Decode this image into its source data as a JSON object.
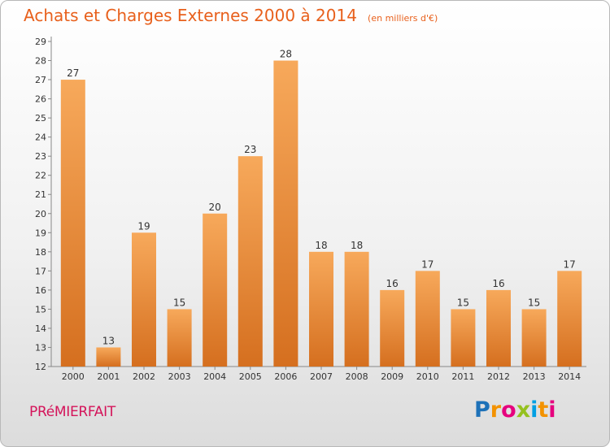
{
  "header": {
    "title": "Achats et Charges Externes 2000 à 2014",
    "unit": "(en milliers d'€)"
  },
  "footer": {
    "commune": "PRéMIERFAIT",
    "logo_letters": [
      "P",
      "r",
      "o",
      "x",
      "i",
      "t",
      "i"
    ],
    "logo_colors": [
      "#1d71b8",
      "#f39200",
      "#e6007e",
      "#95c11f",
      "#009fe3",
      "#f39200",
      "#e6007e"
    ]
  },
  "colors": {
    "bar_top": "#f7a95b",
    "bar_bottom": "#d56f1f",
    "axis": "#888888",
    "title": "#e8601c"
  },
  "chart_data": {
    "type": "bar",
    "categories": [
      "2000",
      "2001",
      "2002",
      "2003",
      "2004",
      "2005",
      "2006",
      "2007",
      "2008",
      "2009",
      "2010",
      "2011",
      "2012",
      "2013",
      "2014"
    ],
    "values": [
      27,
      13,
      19,
      15,
      20,
      23,
      28,
      18,
      18,
      16,
      17,
      15,
      16,
      15,
      17
    ],
    "data_labels": [
      "27",
      "13",
      "19",
      "15",
      "20",
      "23",
      "28",
      "18",
      "18",
      "16",
      "17",
      "15",
      "16",
      "15",
      "17"
    ],
    "yticks": [
      12,
      13,
      14,
      15,
      16,
      17,
      18,
      19,
      20,
      21,
      22,
      23,
      24,
      25,
      26,
      27,
      28,
      29
    ],
    "ylim": [
      12,
      29
    ],
    "grid": false,
    "legend": "none"
  }
}
